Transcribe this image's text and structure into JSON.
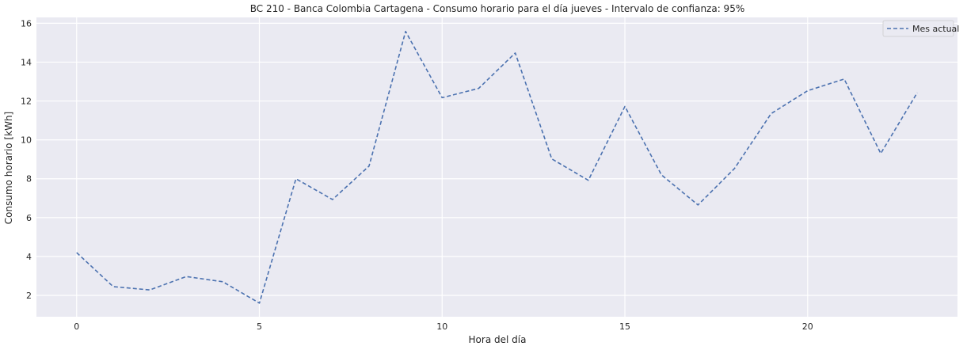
{
  "chart_data": {
    "type": "line",
    "title": "BC 210 - Banca Colombia Cartagena - Consumo horario para el día jueves - Intervalo de confianza: 95%",
    "xlabel": "Hora del día",
    "ylabel": "Consumo horario [kWh]",
    "xlim": [
      -1.1,
      24.1
    ],
    "ylim": [
      0.9,
      16.3
    ],
    "xticks": [
      0,
      5,
      10,
      15,
      20
    ],
    "yticks": [
      2,
      4,
      6,
      8,
      10,
      12,
      14,
      16
    ],
    "grid": true,
    "legend_position": "top-right",
    "series": [
      {
        "name": "Mes actual",
        "style": "dashed",
        "color": "#4c72b0",
        "x": [
          0,
          1,
          2,
          3,
          4,
          5,
          6,
          7,
          8,
          9,
          10,
          11,
          12,
          13,
          14,
          15,
          16,
          17,
          18,
          19,
          20,
          21,
          22,
          23
        ],
        "values": [
          4.2,
          2.45,
          2.28,
          2.97,
          2.7,
          1.6,
          8.0,
          6.93,
          8.65,
          15.58,
          12.17,
          12.65,
          14.47,
          9.02,
          7.92,
          11.72,
          8.2,
          6.65,
          8.53,
          11.35,
          12.53,
          13.13,
          9.3,
          12.43
        ]
      }
    ]
  }
}
